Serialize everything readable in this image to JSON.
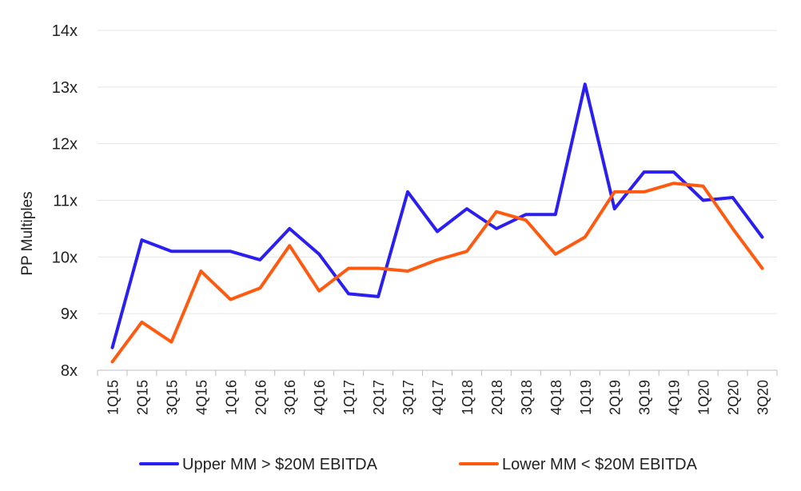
{
  "chart_data": {
    "type": "line",
    "title": "",
    "xlabel": "",
    "ylabel": "PP Multiples",
    "ylim": [
      8,
      14
    ],
    "yticks": [
      8,
      9,
      10,
      11,
      12,
      13,
      14
    ],
    "ytick_labels": [
      "8x",
      "9x",
      "10x",
      "11x",
      "12x",
      "13x",
      "14x"
    ],
    "grid": true,
    "legend_position": "bottom",
    "categories": [
      "1Q15",
      "2Q15",
      "3Q15",
      "4Q15",
      "1Q16",
      "2Q16",
      "3Q16",
      "4Q16",
      "1Q17",
      "2Q17",
      "3Q17",
      "4Q17",
      "1Q18",
      "2Q18",
      "3Q18",
      "4Q18",
      "1Q19",
      "2Q19",
      "3Q19",
      "4Q19",
      "1Q20",
      "2Q20",
      "3Q20"
    ],
    "series": [
      {
        "name": "Upper MM > $20M EBITDA",
        "color": "#2b1ef0",
        "values": [
          8.4,
          10.3,
          10.1,
          10.1,
          10.1,
          9.95,
          10.5,
          10.05,
          9.35,
          9.3,
          11.15,
          10.45,
          10.85,
          10.5,
          10.75,
          10.75,
          13.05,
          10.85,
          11.5,
          11.5,
          11.0,
          11.05,
          10.35
        ]
      },
      {
        "name": "Lower MM < $20M EBITDA",
        "color": "#ff5a10",
        "values": [
          8.15,
          8.85,
          8.5,
          9.75,
          9.25,
          9.45,
          10.2,
          9.4,
          9.8,
          9.8,
          9.75,
          9.95,
          10.1,
          10.8,
          10.65,
          10.05,
          10.35,
          11.15,
          11.15,
          11.3,
          11.25,
          10.5,
          9.8
        ]
      }
    ]
  }
}
